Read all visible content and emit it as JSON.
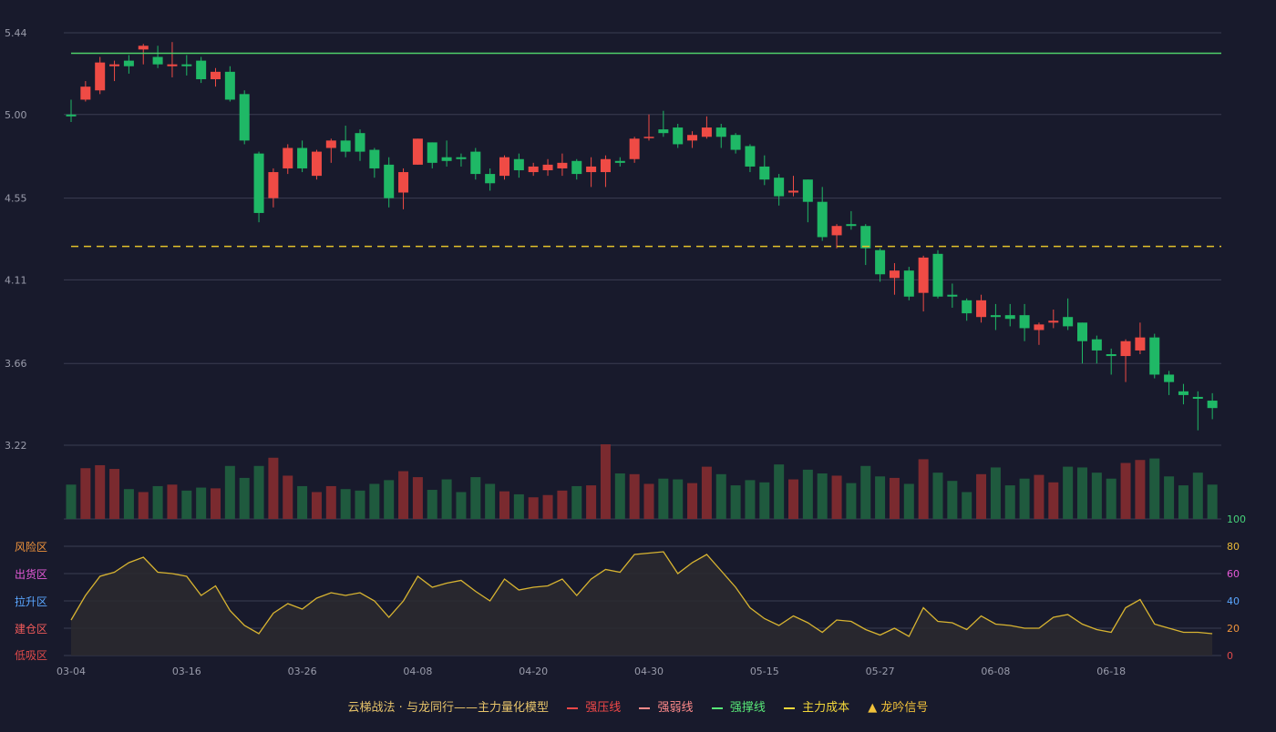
{
  "chart_data": {
    "type": "candlestick",
    "price_axis": {
      "ticks": [
        "5.44",
        "5.00",
        "4.55",
        "4.11",
        "3.66",
        "3.22"
      ],
      "ylim": [
        3.22,
        5.44
      ]
    },
    "x_axis": {
      "tick_labels": [
        {
          "label": "03-04",
          "index": 0
        },
        {
          "label": "03-16",
          "index": 8
        },
        {
          "label": "03-26",
          "index": 16
        },
        {
          "label": "04-08",
          "index": 24
        },
        {
          "label": "04-20",
          "index": 32
        },
        {
          "label": "04-30",
          "index": 40
        },
        {
          "label": "05-15",
          "index": 48
        },
        {
          "label": "05-27",
          "index": 56
        },
        {
          "label": "06-08",
          "index": 64
        },
        {
          "label": "06-18",
          "index": 72
        }
      ]
    },
    "candles": [
      [
        5.0,
        4.99,
        5.08,
        4.96
      ],
      [
        5.08,
        5.15,
        5.18,
        5.07
      ],
      [
        5.13,
        5.28,
        5.31,
        5.11
      ],
      [
        5.26,
        5.27,
        5.29,
        5.18
      ],
      [
        5.29,
        5.26,
        5.32,
        5.22
      ],
      [
        5.35,
        5.37,
        5.38,
        5.27
      ],
      [
        5.31,
        5.27,
        5.37,
        5.25
      ],
      [
        5.26,
        5.27,
        5.39,
        5.2
      ],
      [
        5.27,
        5.26,
        5.32,
        5.21
      ],
      [
        5.29,
        5.19,
        5.31,
        5.17
      ],
      [
        5.19,
        5.23,
        5.25,
        5.15
      ],
      [
        5.23,
        5.08,
        5.26,
        5.07
      ],
      [
        5.11,
        4.86,
        5.13,
        4.84
      ],
      [
        4.79,
        4.47,
        4.8,
        4.42
      ],
      [
        4.55,
        4.69,
        4.71,
        4.5
      ],
      [
        4.71,
        4.82,
        4.84,
        4.68
      ],
      [
        4.82,
        4.71,
        4.86,
        4.69
      ],
      [
        4.67,
        4.8,
        4.81,
        4.65
      ],
      [
        4.82,
        4.86,
        4.87,
        4.74
      ],
      [
        4.86,
        4.8,
        4.94,
        4.77
      ],
      [
        4.9,
        4.8,
        4.92,
        4.75
      ],
      [
        4.81,
        4.71,
        4.82,
        4.66
      ],
      [
        4.73,
        4.55,
        4.77,
        4.5
      ],
      [
        4.58,
        4.69,
        4.71,
        4.49
      ],
      [
        4.73,
        4.87,
        4.87,
        4.73
      ],
      [
        4.85,
        4.74,
        4.85,
        4.71
      ],
      [
        4.77,
        4.75,
        4.86,
        4.72
      ],
      [
        4.77,
        4.76,
        4.79,
        4.72
      ],
      [
        4.8,
        4.68,
        4.82,
        4.65
      ],
      [
        4.68,
        4.63,
        4.71,
        4.59
      ],
      [
        4.67,
        4.77,
        4.78,
        4.65
      ],
      [
        4.76,
        4.7,
        4.79,
        4.66
      ],
      [
        4.69,
        4.72,
        4.74,
        4.67
      ],
      [
        4.7,
        4.73,
        4.76,
        4.67
      ],
      [
        4.71,
        4.74,
        4.79,
        4.67
      ],
      [
        4.75,
        4.68,
        4.76,
        4.65
      ],
      [
        4.69,
        4.72,
        4.77,
        4.61
      ],
      [
        4.69,
        4.76,
        4.78,
        4.61
      ],
      [
        4.75,
        4.74,
        4.77,
        4.72
      ],
      [
        4.76,
        4.87,
        4.88,
        4.74
      ],
      [
        4.88,
        4.88,
        5.0,
        4.86
      ],
      [
        4.92,
        4.9,
        5.02,
        4.88
      ],
      [
        4.93,
        4.84,
        4.95,
        4.82
      ],
      [
        4.86,
        4.89,
        4.91,
        4.82
      ],
      [
        4.88,
        4.93,
        4.99,
        4.87
      ],
      [
        4.93,
        4.88,
        4.95,
        4.82
      ],
      [
        4.89,
        4.81,
        4.9,
        4.79
      ],
      [
        4.83,
        4.72,
        4.84,
        4.69
      ],
      [
        4.72,
        4.65,
        4.78,
        4.62
      ],
      [
        4.66,
        4.56,
        4.68,
        4.51
      ],
      [
        4.58,
        4.59,
        4.67,
        4.56
      ],
      [
        4.65,
        4.53,
        4.65,
        4.42
      ],
      [
        4.53,
        4.34,
        4.61,
        4.32
      ],
      [
        4.35,
        4.4,
        4.41,
        4.28
      ],
      [
        4.41,
        4.4,
        4.48,
        4.38
      ],
      [
        4.4,
        4.28,
        4.41,
        4.19
      ],
      [
        4.27,
        4.14,
        4.28,
        4.1
      ],
      [
        4.12,
        4.16,
        4.2,
        4.03
      ],
      [
        4.16,
        4.02,
        4.18,
        4.0
      ],
      [
        4.04,
        4.23,
        4.24,
        3.94
      ],
      [
        4.25,
        4.02,
        4.27,
        4.01
      ],
      [
        4.03,
        4.02,
        4.09,
        3.96
      ],
      [
        4.0,
        3.93,
        4.01,
        3.89
      ],
      [
        3.91,
        4.0,
        4.03,
        3.88
      ],
      [
        3.92,
        3.91,
        3.98,
        3.84
      ],
      [
        3.92,
        3.9,
        3.98,
        3.86
      ],
      [
        3.92,
        3.85,
        3.98,
        3.78
      ],
      [
        3.84,
        3.87,
        3.88,
        3.76
      ],
      [
        3.88,
        3.89,
        3.95,
        3.85
      ],
      [
        3.91,
        3.86,
        4.01,
        3.84
      ],
      [
        3.88,
        3.78,
        3.88,
        3.66
      ],
      [
        3.79,
        3.73,
        3.81,
        3.66
      ],
      [
        3.71,
        3.7,
        3.74,
        3.6
      ],
      [
        3.7,
        3.78,
        3.79,
        3.56
      ],
      [
        3.73,
        3.8,
        3.88,
        3.71
      ],
      [
        3.8,
        3.6,
        3.82,
        3.58
      ],
      [
        3.6,
        3.56,
        3.62,
        3.49
      ],
      [
        3.51,
        3.49,
        3.55,
        3.44
      ],
      [
        3.48,
        3.47,
        3.51,
        3.3
      ],
      [
        3.46,
        3.42,
        3.5,
        3.36
      ]
    ],
    "volume_colors": {
      "up_dim": "#7a2a2f",
      "down_dim": "#1f5a3e"
    },
    "volumes": [
      0.46,
      0.68,
      0.72,
      0.67,
      0.4,
      0.36,
      0.44,
      0.46,
      0.38,
      0.42,
      0.41,
      0.71,
      0.55,
      0.71,
      0.82,
      0.58,
      0.44,
      0.36,
      0.44,
      0.4,
      0.38,
      0.47,
      0.52,
      0.64,
      0.56,
      0.39,
      0.53,
      0.36,
      0.56,
      0.47,
      0.37,
      0.33,
      0.29,
      0.32,
      0.38,
      0.44,
      0.45,
      1.0,
      0.61,
      0.6,
      0.47,
      0.54,
      0.53,
      0.48,
      0.7,
      0.6,
      0.45,
      0.52,
      0.49,
      0.73,
      0.53,
      0.66,
      0.61,
      0.58,
      0.48,
      0.71,
      0.57,
      0.55,
      0.47,
      0.8,
      0.62,
      0.51,
      0.36,
      0.6,
      0.69,
      0.45,
      0.54,
      0.59,
      0.49,
      0.7,
      0.69,
      0.62,
      0.54,
      0.75,
      0.79,
      0.81,
      0.57,
      0.45,
      0.62,
      0.46
    ],
    "reference_lines": {
      "strong_support": 5.33,
      "main_cost": 4.29
    },
    "indicator": {
      "right_ticks": [
        "100",
        "80",
        "60",
        "40",
        "20",
        "0"
      ],
      "right_tick_colors": [
        "#46d27a",
        "#e8b838",
        "#e45ad7",
        "#5aa6ff",
        "#f0943c",
        "#e04a4a"
      ],
      "ylim": [
        0,
        100
      ],
      "zones": [
        {
          "label": "风险区",
          "color": "#f0943c"
        },
        {
          "label": "出货区",
          "color": "#e45ad7"
        },
        {
          "label": "拉升区",
          "color": "#5aa6ff"
        },
        {
          "label": "建仓区",
          "color": "#f05a5a"
        },
        {
          "label": "低吸区",
          "color": "#e04a4a"
        }
      ],
      "values": [
        26,
        44,
        58,
        61,
        68,
        72,
        61,
        60,
        58,
        44,
        51,
        33,
        22,
        16,
        31,
        38,
        34,
        42,
        46,
        44,
        46,
        40,
        28,
        40,
        58,
        50,
        53,
        55,
        47,
        40,
        56,
        48,
        50,
        51,
        56,
        44,
        56,
        63,
        61,
        74,
        75,
        76,
        60,
        68,
        74,
        62,
        50,
        35,
        27,
        22,
        29,
        24,
        17,
        26,
        25,
        19,
        15,
        20,
        14,
        35,
        25,
        24,
        19,
        29,
        23,
        22,
        20,
        20,
        28,
        30,
        23,
        19,
        17,
        35,
        41,
        23,
        20,
        17,
        17,
        16
      ]
    },
    "legend": [
      {
        "label": "云梯战法 · 与龙同行——主力量化模型",
        "marker": "none",
        "color": "#e6c36a"
      },
      {
        "label": "强压线",
        "marker": "solid",
        "color": "#f04848"
      },
      {
        "label": "强弱线",
        "marker": "dashed",
        "color": "#ff8a8a"
      },
      {
        "label": "强撑线",
        "marker": "solid",
        "color": "#58e878"
      },
      {
        "label": "主力成本",
        "marker": "dashed",
        "color": "#f2d73a"
      },
      {
        "label": "龙吟信号",
        "marker": "triangle",
        "color": "#f2c23a"
      }
    ]
  },
  "colors": {
    "background": "#181a2c",
    "up": "#ef4b45",
    "down": "#1fb866",
    "grid": "#3a3d52",
    "axis_text": "#9a9cab",
    "support_line": "#4fd06a",
    "cost_line": "#e2c12a",
    "indicator_line": "#d8b431",
    "indicator_fill": "#2c2a2f"
  }
}
